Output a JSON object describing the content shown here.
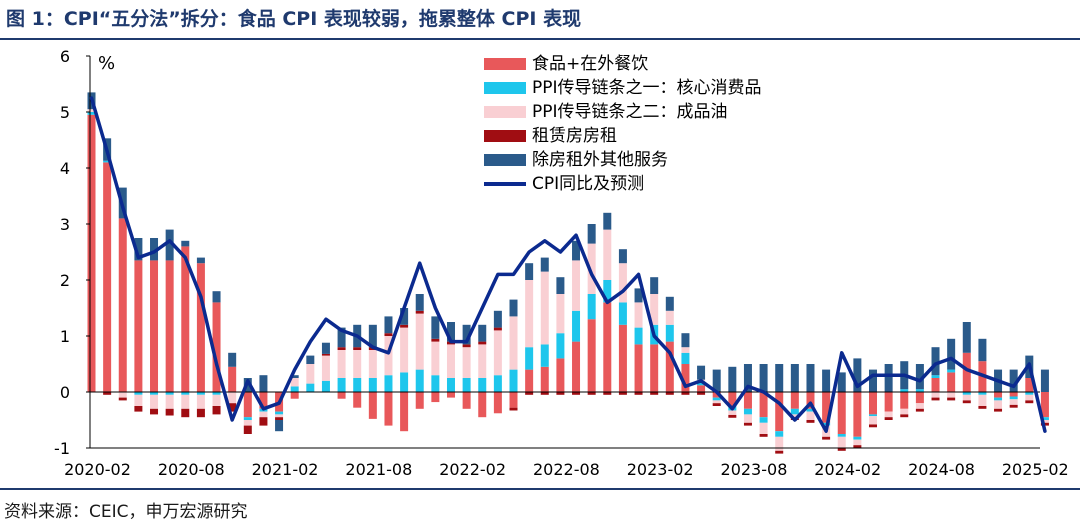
{
  "title": "图 1：CPI“五分法”拆分：食品 CPI 表现较弱，拖累整体 CPI 表现",
  "source": "资料来源：CEIC，申万宏源研究",
  "colors": {
    "food": "#e8585a",
    "ppi_core": "#1ec6ec",
    "ppi_oil": "#f9cfd3",
    "rent": "#a00d12",
    "services": "#2a5a8a",
    "cpi_line": "#0b2a8f",
    "title": "#1f3a6e"
  },
  "chart_data": {
    "type": "bar",
    "stacked": true,
    "ylabel": "%",
    "ylim": [
      -1,
      6
    ],
    "yticks": [
      -1,
      0,
      1,
      2,
      3,
      4,
      5,
      6
    ],
    "grid": false,
    "legend_position": "top-right",
    "x_tick_labels": [
      "2020-02",
      "2020-08",
      "2021-02",
      "2021-08",
      "2022-02",
      "2022-08",
      "2023-02",
      "2023-08",
      "2024-02",
      "2024-08",
      "2025-02"
    ],
    "x_tick_index": [
      0,
      6,
      12,
      18,
      24,
      30,
      36,
      42,
      48,
      54,
      60
    ],
    "series": [
      {
        "name": "食品+在外餐饮",
        "key": "food",
        "values": [
          4.95,
          4.1,
          3.1,
          2.35,
          2.35,
          2.35,
          2.6,
          2.3,
          1.6,
          0.45,
          -0.45,
          -0.3,
          -0.35,
          -0.12,
          0.0,
          0.0,
          -0.12,
          -0.28,
          -0.48,
          -0.6,
          -0.7,
          -0.3,
          -0.18,
          -0.1,
          -0.3,
          -0.45,
          -0.38,
          -0.28,
          0.4,
          0.45,
          0.6,
          0.9,
          1.3,
          1.6,
          1.2,
          0.85,
          0.85,
          0.9,
          0.5,
          0.12,
          -0.1,
          -0.25,
          -0.3,
          -0.45,
          -0.7,
          -0.3,
          -0.3,
          -0.55,
          -0.75,
          -0.8,
          -0.4,
          -0.35,
          -0.3,
          -0.2,
          0.25,
          0.35,
          0.7,
          0.55,
          -0.1,
          -0.08,
          0.25,
          -0.45
        ]
      },
      {
        "name": "PPI传导链条之一：核心消费品",
        "key": "ppi_core",
        "values": [
          0.05,
          0.03,
          0.0,
          -0.05,
          -0.05,
          -0.05,
          -0.05,
          -0.05,
          -0.05,
          0.0,
          -0.05,
          -0.05,
          -0.05,
          0.1,
          0.15,
          0.2,
          0.25,
          0.25,
          0.25,
          0.3,
          0.35,
          0.4,
          0.3,
          0.25,
          0.25,
          0.25,
          0.3,
          0.4,
          0.4,
          0.4,
          0.45,
          0.55,
          0.45,
          0.4,
          0.4,
          0.3,
          0.35,
          0.3,
          0.2,
          0.05,
          -0.05,
          -0.08,
          -0.1,
          -0.1,
          -0.1,
          -0.1,
          -0.05,
          -0.05,
          -0.05,
          -0.05,
          -0.03,
          0.0,
          0.05,
          0.05,
          0.05,
          0.05,
          -0.05,
          -0.05,
          -0.05,
          -0.05,
          -0.05,
          -0.05
        ]
      },
      {
        "name": "PPI传导链条之二：成品油",
        "key": "ppi_oil",
        "values": [
          0.05,
          0.0,
          -0.1,
          -0.2,
          -0.25,
          -0.25,
          -0.25,
          -0.25,
          -0.2,
          -0.2,
          -0.1,
          -0.1,
          -0.05,
          0.15,
          0.35,
          0.45,
          0.5,
          0.5,
          0.5,
          0.7,
          0.8,
          1.0,
          0.6,
          0.6,
          0.55,
          0.6,
          0.8,
          0.95,
          1.2,
          1.3,
          0.7,
          0.9,
          0.9,
          0.9,
          0.7,
          0.45,
          0.55,
          0.25,
          0.1,
          0.05,
          -0.05,
          -0.08,
          -0.15,
          -0.2,
          -0.25,
          -0.05,
          -0.15,
          -0.2,
          -0.2,
          -0.1,
          -0.15,
          -0.1,
          -0.1,
          -0.1,
          -0.1,
          -0.1,
          -0.1,
          -0.2,
          -0.15,
          -0.1,
          -0.1,
          -0.05
        ]
      },
      {
        "name": "租赁房房租",
        "key": "rent",
        "values": [
          0.0,
          -0.05,
          -0.05,
          -0.1,
          -0.1,
          -0.12,
          -0.15,
          -0.15,
          -0.15,
          -0.15,
          -0.15,
          -0.15,
          -0.05,
          0.0,
          0.0,
          0.03,
          0.05,
          0.05,
          0.05,
          0.05,
          0.05,
          0.05,
          0.05,
          0.05,
          0.05,
          0.05,
          0.05,
          -0.05,
          -0.05,
          -0.05,
          -0.05,
          -0.05,
          -0.05,
          -0.05,
          -0.05,
          -0.05,
          -0.05,
          -0.05,
          -0.05,
          -0.05,
          -0.05,
          -0.05,
          -0.05,
          -0.05,
          -0.05,
          -0.05,
          -0.05,
          -0.05,
          -0.05,
          -0.05,
          -0.05,
          -0.05,
          -0.05,
          -0.05,
          -0.05,
          -0.05,
          -0.05,
          -0.05,
          -0.05,
          -0.05,
          -0.05,
          -0.05
        ]
      },
      {
        "name": "除房租外其他服务",
        "key": "services",
        "values": [
          0.3,
          0.4,
          0.55,
          0.4,
          0.4,
          0.55,
          0.1,
          0.1,
          0.2,
          0.25,
          0.25,
          0.3,
          -0.2,
          0.05,
          0.15,
          0.2,
          0.35,
          0.4,
          0.4,
          0.3,
          0.3,
          0.3,
          0.4,
          0.35,
          0.35,
          0.3,
          0.3,
          0.3,
          0.3,
          0.25,
          0.3,
          0.35,
          0.35,
          0.3,
          0.25,
          0.25,
          0.3,
          0.25,
          0.25,
          0.25,
          0.4,
          0.45,
          0.5,
          0.5,
          0.5,
          0.5,
          0.5,
          0.4,
          0.35,
          0.6,
          0.4,
          0.5,
          0.5,
          0.45,
          0.5,
          0.55,
          0.55,
          0.4,
          0.4,
          0.4,
          0.4,
          0.4
        ]
      },
      {
        "name": "CPI同比及预测",
        "key": "cpi_line",
        "type": "line",
        "values": [
          5.25,
          4.3,
          3.3,
          2.4,
          2.5,
          2.7,
          2.4,
          1.7,
          0.5,
          -0.5,
          0.2,
          -0.3,
          -0.2,
          0.4,
          0.9,
          1.3,
          1.1,
          1.0,
          0.8,
          0.7,
          1.5,
          2.3,
          1.5,
          0.9,
          0.9,
          1.5,
          2.1,
          2.1,
          2.5,
          2.7,
          2.5,
          2.8,
          2.1,
          1.6,
          1.8,
          2.1,
          1.0,
          0.7,
          0.1,
          0.2,
          0.0,
          -0.3,
          0.1,
          0.0,
          -0.2,
          -0.5,
          -0.2,
          -0.7,
          0.7,
          0.1,
          0.3,
          0.3,
          0.3,
          0.2,
          0.5,
          0.6,
          0.4,
          0.3,
          0.2,
          0.1,
          0.5,
          -0.7
        ]
      }
    ]
  }
}
